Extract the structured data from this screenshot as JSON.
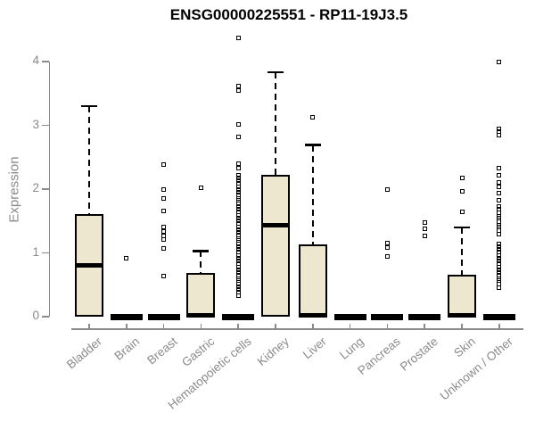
{
  "chart_data": {
    "type": "boxplot",
    "title": "ENSG00000225551 - RP11-19J3.5",
    "ylabel": "Expression",
    "xlabel": "",
    "ylim": [
      0,
      4.4
    ],
    "yticks": [
      0,
      1,
      2,
      3,
      4
    ],
    "grid": false,
    "legend": null,
    "colors": {
      "box_fill": "#ece7ce",
      "box_border": "#000000",
      "median": "#000000",
      "whisker": "#000000",
      "outlier": "#000000",
      "axis": "#8a8a8a",
      "tick_label": "#8a8a8a",
      "title_text": "#000000"
    },
    "categories": [
      "Bladder",
      "Brain",
      "Breast",
      "Gastric",
      "Hematopoietic cells",
      "Kidney",
      "Liver",
      "Lung",
      "Pancreas",
      "Prostate",
      "Skin",
      "Unknown / Other"
    ],
    "series": [
      {
        "category": "Bladder",
        "q1": 0,
        "median": 0.81,
        "q3": 1.61,
        "whisker_low": 0,
        "whisker_high": 3.3,
        "outliers": []
      },
      {
        "category": "Brain",
        "q1": 0,
        "median": 0,
        "q3": 0,
        "whisker_low": 0,
        "whisker_high": 0,
        "outliers": [
          0.92
        ]
      },
      {
        "category": "Breast",
        "q1": 0,
        "median": 0,
        "q3": 0,
        "whisker_low": 0,
        "whisker_high": 0,
        "outliers": [
          2.38,
          1.99,
          1.86,
          1.66,
          1.4,
          1.33,
          1.27,
          1.21,
          1.07,
          0.64
        ]
      },
      {
        "category": "Gastric",
        "q1": 0,
        "median": 0,
        "q3": 0.68,
        "whisker_low": 0,
        "whisker_high": 1.03,
        "outliers": [
          2.02
        ]
      },
      {
        "category": "Hematopoietic cells",
        "q1": 0,
        "median": 0,
        "q3": 0,
        "whisker_low": 0,
        "whisker_high": 0,
        "outliers": [
          4.37,
          3.62,
          3.54,
          3.02,
          2.82,
          2.4,
          2.33,
          2.22,
          2.18,
          2.13,
          2.09,
          2.04,
          2.0,
          1.95,
          1.91,
          1.86,
          1.82,
          1.77,
          1.73,
          1.68,
          1.64,
          1.59,
          1.55,
          1.5,
          1.46,
          1.41,
          1.37,
          1.32,
          1.28,
          1.23,
          1.19,
          1.14,
          1.1,
          1.05,
          1.01,
          0.96,
          0.92,
          0.87,
          0.83,
          0.78,
          0.74,
          0.69,
          0.65,
          0.6,
          0.56,
          0.51,
          0.47,
          0.42,
          0.38,
          0.33
        ]
      },
      {
        "category": "Kidney",
        "q1": 0,
        "median": 1.43,
        "q3": 2.22,
        "whisker_low": 0,
        "whisker_high": 3.83,
        "outliers": []
      },
      {
        "category": "Liver",
        "q1": 0,
        "median": 0,
        "q3": 1.13,
        "whisker_low": 0,
        "whisker_high": 2.69,
        "outliers": [
          3.12
        ]
      },
      {
        "category": "Lung",
        "q1": 0,
        "median": 0,
        "q3": 0,
        "whisker_low": 0,
        "whisker_high": 0,
        "outliers": []
      },
      {
        "category": "Pancreas",
        "q1": 0,
        "median": 0,
        "q3": 0,
        "whisker_low": 0,
        "whisker_high": 0,
        "outliers": [
          1.99,
          1.15,
          1.08,
          0.95
        ]
      },
      {
        "category": "Prostate",
        "q1": 0,
        "median": 0,
        "q3": 0,
        "whisker_low": 0,
        "whisker_high": 0,
        "outliers": [
          1.47,
          1.38,
          1.27
        ]
      },
      {
        "category": "Skin",
        "q1": 0,
        "median": 0,
        "q3": 0.66,
        "whisker_low": 0,
        "whisker_high": 1.4,
        "outliers": [
          2.17,
          1.96,
          1.65
        ]
      },
      {
        "category": "Unknown / Other",
        "q1": 0,
        "median": 0,
        "q3": 0,
        "whisker_low": 0,
        "whisker_high": 0,
        "outliers": [
          3.99,
          2.95,
          2.9,
          2.84,
          2.33,
          2.21,
          2.1,
          2.03,
          1.94,
          1.82,
          1.73,
          1.68,
          1.63,
          1.58,
          1.54,
          1.49,
          1.44,
          1.4,
          1.35,
          1.3,
          1.14,
          1.1,
          1.05,
          1.01,
          0.96,
          0.92,
          0.87,
          0.83,
          0.78,
          0.74,
          0.69,
          0.65,
          0.6,
          0.56,
          0.51,
          0.46
        ]
      }
    ]
  }
}
